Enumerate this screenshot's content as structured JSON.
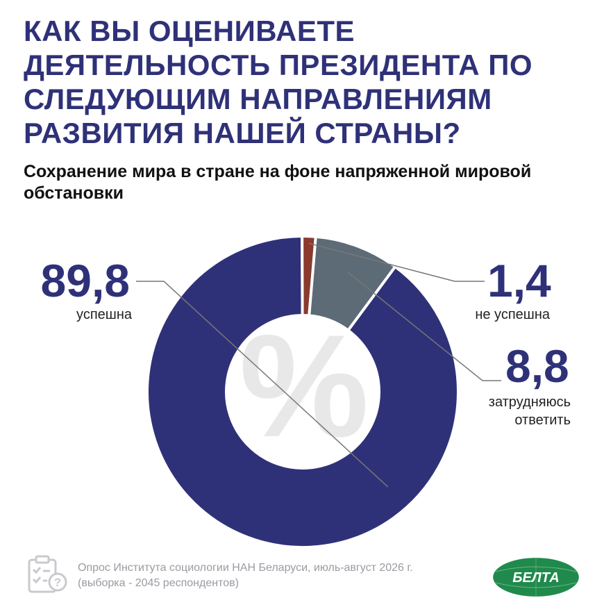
{
  "title": "Как вы оцениваете деятельность Президента по следующим направлениям развития нашей страны?",
  "subtitle": "Сохранение мира в стране на фоне напряженной мировой обстановки",
  "footnote": {
    "line1": "Опрос Института социологии НАН Беларуси, июль-август 2026 г.",
    "line2": "(выборка - 2045 респондентов)"
  },
  "center_symbol": "%",
  "logo_text": "БЕЛТА",
  "colors": {
    "title": "#2f3178",
    "success": "#2f3178",
    "fail": "#8b3a2e",
    "hard": "#5d6b77",
    "logo": "#1f8a4c"
  },
  "chart_data": {
    "type": "pie",
    "style": "donut",
    "title": "Сохранение мира в стране на фоне напряженной мировой обстановки",
    "slices": [
      {
        "label": "успешна",
        "value": 89.8,
        "display": "89,8",
        "color": "#2f3178"
      },
      {
        "label": "не успешна",
        "value": 1.4,
        "display": "1,4",
        "color": "#8b3a2e"
      },
      {
        "label": "затрудняюсь ответить",
        "value": 8.8,
        "display": "8,8",
        "color": "#5d6b77"
      }
    ]
  }
}
